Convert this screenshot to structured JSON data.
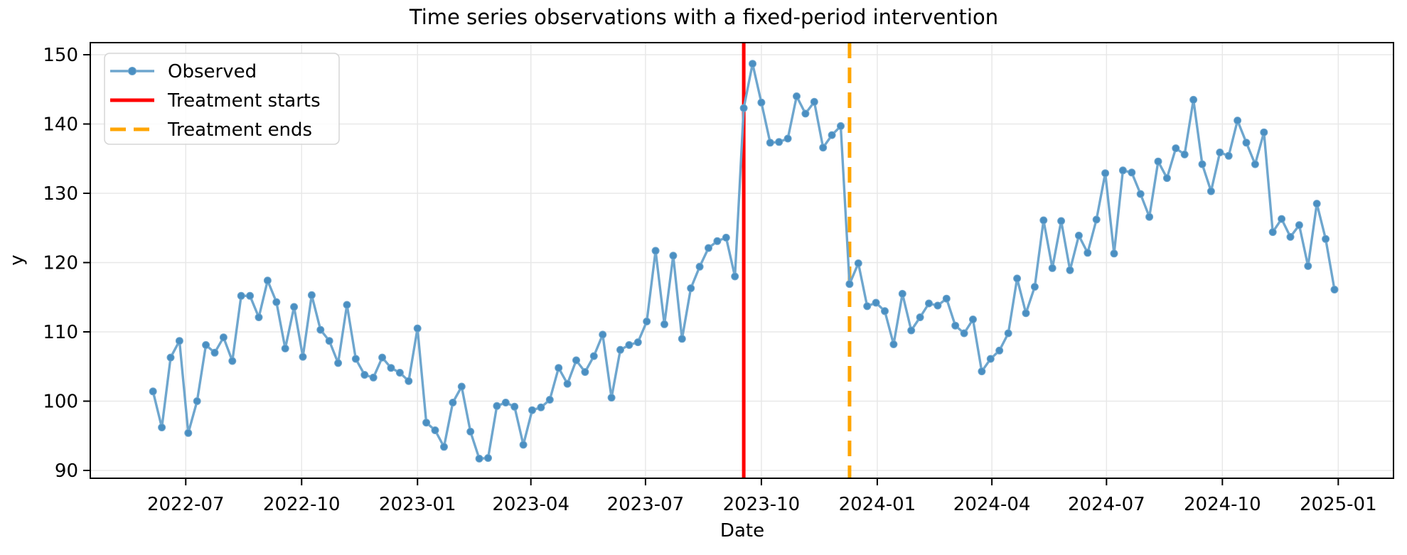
{
  "figure": {
    "title": "Time series observations with a fixed-period intervention",
    "xlabel": "Date",
    "ylabel": "y"
  },
  "legend": {
    "position": "upper left",
    "items": [
      {
        "label": "Observed",
        "kind": "line-with-marker",
        "color": "#6ea6ce",
        "marker_color": "#4a8fc2"
      },
      {
        "label": "Treatment starts",
        "kind": "solid-line",
        "color": "#ff0000"
      },
      {
        "label": "Treatment ends",
        "kind": "dashed-line",
        "color": "#ffa500"
      }
    ]
  },
  "style": {
    "line_color": "#6ea6ce",
    "marker_color": "#4a8fc2",
    "treatment_start_color": "#ff0000",
    "treatment_end_color": "#ffa500",
    "grid_color": "#e8e8e8",
    "spine_color": "#000000",
    "legend_border_color": "#d5d5d5"
  },
  "chart_data": {
    "type": "line",
    "title": "Time series observations with a fixed-period intervention",
    "xlabel": "Date",
    "ylabel": "y",
    "grid": true,
    "legend_position": "upper left",
    "x_start_date": "2022-06-05",
    "frequency": "weekly",
    "ylim": [
      88.9,
      151.7
    ],
    "yticks": [
      90,
      100,
      110,
      120,
      130,
      140,
      150
    ],
    "xticks": [
      {
        "label": "2022-07",
        "date": "2022-07-01"
      },
      {
        "label": "2022-10",
        "date": "2022-10-01"
      },
      {
        "label": "2023-01",
        "date": "2023-01-01"
      },
      {
        "label": "2023-04",
        "date": "2023-04-01"
      },
      {
        "label": "2023-07",
        "date": "2023-07-01"
      },
      {
        "label": "2023-10",
        "date": "2023-10-01"
      },
      {
        "label": "2024-01",
        "date": "2024-01-01"
      },
      {
        "label": "2024-04",
        "date": "2024-04-01"
      },
      {
        "label": "2024-07",
        "date": "2024-07-01"
      },
      {
        "label": "2024-10",
        "date": "2024-10-01"
      },
      {
        "label": "2025-01",
        "date": "2025-01-01"
      }
    ],
    "vlines": [
      {
        "name": "Treatment starts",
        "date": "2023-09-17",
        "color": "#ff0000",
        "style": "solid"
      },
      {
        "name": "Treatment ends",
        "date": "2023-12-10",
        "color": "#ffa500",
        "style": "dashed"
      }
    ],
    "series": [
      {
        "name": "Observed",
        "start_date": "2022-06-05",
        "step_days": 7,
        "values": [
          101.4,
          96.2,
          106.3,
          108.7,
          95.4,
          100.0,
          108.1,
          107.0,
          109.2,
          105.8,
          115.2,
          115.2,
          112.1,
          117.4,
          114.3,
          107.6,
          113.6,
          106.4,
          115.3,
          110.3,
          108.7,
          105.5,
          113.9,
          106.1,
          103.8,
          103.4,
          106.3,
          104.8,
          104.1,
          102.9,
          110.5,
          96.9,
          95.8,
          93.4,
          99.8,
          102.1,
          95.6,
          91.7,
          91.8,
          99.3,
          99.8,
          99.2,
          93.7,
          98.7,
          99.1,
          100.2,
          104.8,
          102.5,
          105.9,
          104.2,
          106.5,
          109.6,
          100.5,
          107.4,
          108.1,
          108.5,
          111.5,
          121.7,
          111.1,
          121.0,
          109.0,
          116.3,
          119.4,
          122.1,
          123.1,
          123.6,
          118.0,
          142.3,
          148.7,
          143.1,
          137.3,
          137.4,
          137.9,
          144.0,
          141.5,
          143.2,
          136.6,
          138.4,
          139.7,
          116.9,
          119.9,
          113.7,
          114.2,
          113.0,
          108.2,
          115.5,
          110.2,
          112.1,
          114.1,
          113.8,
          114.8,
          110.9,
          109.8,
          111.8,
          104.3,
          106.1,
          107.3,
          109.8,
          117.7,
          112.7,
          116.5,
          126.1,
          119.2,
          126.0,
          118.9,
          123.9,
          121.4,
          126.2,
          132.9,
          121.3,
          133.3,
          133.0,
          129.9,
          126.6,
          134.6,
          132.2,
          136.5,
          135.6,
          143.5,
          134.2,
          130.3,
          135.9,
          135.4,
          140.5,
          137.3,
          134.2,
          138.8,
          124.4,
          126.3,
          123.7,
          125.4,
          119.5,
          128.5,
          123.4,
          116.1
        ]
      }
    ]
  }
}
